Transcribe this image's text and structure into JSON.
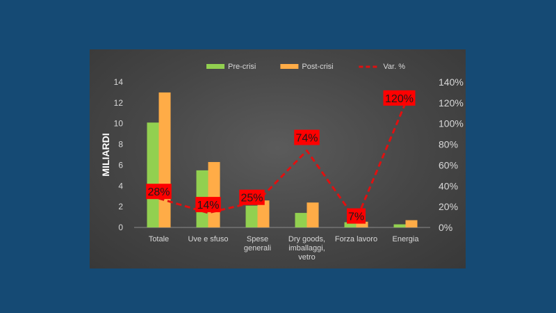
{
  "colors": {
    "background": "#154a74",
    "pre_crisi": "#92d050",
    "post_crisi": "#ffac47",
    "var_line": "#e01010",
    "label_box": "#ff0000",
    "axis_text": "#d9d9d9"
  },
  "chart_data": {
    "type": "bar",
    "categories": [
      [
        "Totale"
      ],
      [
        "Uve e sfuso"
      ],
      [
        "Spese",
        "generali"
      ],
      [
        "Dry goods,",
        "imballaggi,",
        "vetro"
      ],
      [
        "Forza lavoro"
      ],
      [
        "Energia"
      ]
    ],
    "series": [
      {
        "name": "Pre-crisi",
        "type": "bar",
        "axis": "left",
        "values": [
          10.1,
          5.5,
          2.1,
          1.4,
          0.5,
          0.3
        ]
      },
      {
        "name": "Post-crisi",
        "type": "bar",
        "axis": "left",
        "values": [
          13.0,
          6.3,
          2.6,
          2.4,
          0.55,
          0.7
        ]
      },
      {
        "name": "Var. %",
        "type": "line",
        "style": "dashed",
        "axis": "right",
        "values": [
          28,
          14,
          25,
          74,
          7,
          120
        ],
        "labels": [
          "28%",
          "14%",
          "25%",
          "74%",
          "7%",
          "120%"
        ]
      }
    ],
    "ylabel": "MILIARDI",
    "ylim": [
      0,
      14
    ],
    "yticks": [
      0,
      2,
      4,
      6,
      8,
      10,
      12,
      14
    ],
    "y2lim": [
      0,
      140
    ],
    "y2ticks": [
      "0%",
      "20%",
      "40%",
      "60%",
      "80%",
      "100%",
      "120%",
      "140%"
    ],
    "legend_position": "top",
    "grid": false
  }
}
